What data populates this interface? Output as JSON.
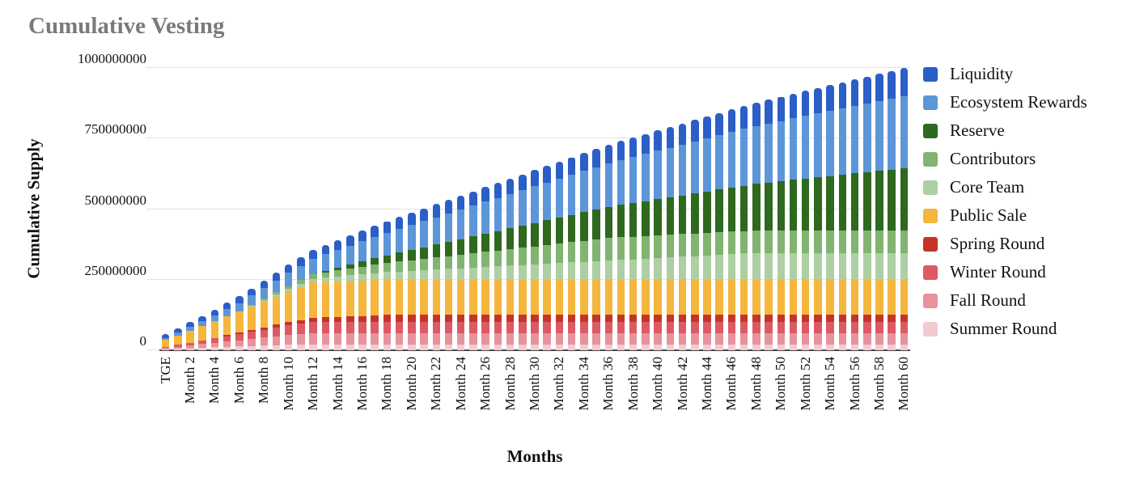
{
  "title": "Cumulative Vesting",
  "y_axis": {
    "title": "Cumulative Supply",
    "ticks": [
      {
        "label": "0",
        "value": 0
      },
      {
        "label": "250000000",
        "value": 250
      },
      {
        "label": "500000000",
        "value": 500
      },
      {
        "label": "750000000",
        "value": 750
      },
      {
        "label": "1000000000",
        "value": 1000
      }
    ]
  },
  "x_axis": {
    "title": "Months",
    "tick_labels": [
      "TGE",
      "Month 2",
      "Month 4",
      "Month 6",
      "Month 8",
      "Month 10",
      "Month 12",
      "Month 14",
      "Month 16",
      "Month 18",
      "Month 20",
      "Month 22",
      "Month 24",
      "Month 26",
      "Month 28",
      "Month 30",
      "Month 32",
      "Month 34",
      "Month 36",
      "Month 38",
      "Month 40",
      "Month 42",
      "Month 44",
      "Month 46",
      "Month 48",
      "Month 50",
      "Month 52",
      "Month 54",
      "Month 56",
      "Month 58",
      "Month 60"
    ],
    "label_every_n_bars": 2
  },
  "legend": [
    {
      "label": "Liquidity",
      "color": "#2b5fc7"
    },
    {
      "label": "Ecosystem Rewards",
      "color": "#5d96d8"
    },
    {
      "label": "Reserve",
      "color": "#2e691e"
    },
    {
      "label": "Contributors",
      "color": "#82b471"
    },
    {
      "label": "Core Team",
      "color": "#adcfa3"
    },
    {
      "label": "Public Sale",
      "color": "#f5b63e"
    },
    {
      "label": "Spring Round",
      "color": "#c53428"
    },
    {
      "label": "Winter Round",
      "color": "#dc5a64"
    },
    {
      "label": "Fall Round",
      "color": "#e6939c"
    },
    {
      "label": "Summer Round",
      "color": "#f3cad0"
    }
  ],
  "chart_data": {
    "type": "bar",
    "stacked": true,
    "title": "Cumulative Vesting",
    "xlabel": "Months",
    "ylabel": "Cumulative Supply",
    "unit": "million tokens",
    "ylim": [
      0,
      1000
    ],
    "ylim_display": [
      0,
      1000000000
    ],
    "grid": true,
    "legend_position": "right",
    "x_index": "0 = TGE, then Month 1 through Month 60 (61 bars)",
    "total_supply_millions": 1000,
    "series_order": "bottom to top",
    "series": [
      {
        "name": "Summer Round",
        "color": "#f3cad0",
        "total": 20,
        "values": [
          4,
          5.6,
          7.2,
          8.8,
          10.4,
          12,
          13.6,
          15.2,
          16.8,
          18.4,
          20,
          20,
          20,
          20,
          20,
          20,
          20,
          20,
          20,
          20,
          20,
          20,
          20,
          20,
          20,
          20,
          20,
          20,
          20,
          20,
          20,
          20,
          20,
          20,
          20,
          20,
          20,
          20,
          20,
          20,
          20,
          20,
          20,
          20,
          20,
          20,
          20,
          20,
          20,
          20,
          20,
          20,
          20,
          20,
          20,
          20,
          20,
          20,
          20,
          20,
          20
        ]
      },
      {
        "name": "Fall Round",
        "color": "#e6939c",
        "total": 40,
        "values": [
          4,
          7,
          10,
          13,
          16,
          19,
          22,
          25,
          28,
          31,
          34,
          37,
          40,
          40,
          40,
          40,
          40,
          40,
          40,
          40,
          40,
          40,
          40,
          40,
          40,
          40,
          40,
          40,
          40,
          40,
          40,
          40,
          40,
          40,
          40,
          40,
          40,
          40,
          40,
          40,
          40,
          40,
          40,
          40,
          40,
          40,
          40,
          40,
          40,
          40,
          40,
          40,
          40,
          40,
          40,
          40,
          40,
          40,
          40,
          40,
          40
        ]
      },
      {
        "name": "Winter Round",
        "color": "#dc5a64",
        "total": 40,
        "values": [
          4,
          7,
          10,
          13,
          16,
          19,
          22,
          25,
          28,
          31,
          34,
          37,
          40,
          40,
          40,
          40,
          40,
          40,
          40,
          40,
          40,
          40,
          40,
          40,
          40,
          40,
          40,
          40,
          40,
          40,
          40,
          40,
          40,
          40,
          40,
          40,
          40,
          40,
          40,
          40,
          40,
          40,
          40,
          40,
          40,
          40,
          40,
          40,
          40,
          40,
          40,
          40,
          40,
          40,
          40,
          40,
          40,
          40,
          40,
          40,
          40
        ]
      },
      {
        "name": "Spring Round",
        "color": "#c53428",
        "total": 25,
        "values": [
          0,
          0,
          0,
          0,
          1.67,
          3.33,
          5,
          6.67,
          8.33,
          10,
          11.67,
          13.33,
          15,
          16.67,
          18.33,
          20,
          21.67,
          23.33,
          25,
          25,
          25,
          25,
          25,
          25,
          25,
          25,
          25,
          25,
          25,
          25,
          25,
          25,
          25,
          25,
          25,
          25,
          25,
          25,
          25,
          25,
          25,
          25,
          25,
          25,
          25,
          25,
          25,
          25,
          25,
          25,
          25,
          25,
          25,
          25,
          25,
          25,
          25,
          25,
          25,
          25,
          25
        ]
      },
      {
        "name": "Public Sale",
        "color": "#f5b63e",
        "total": 125,
        "values": [
          25,
          33.33,
          41.67,
          50,
          58.33,
          66.67,
          75,
          83.33,
          91.67,
          100,
          108.33,
          116.67,
          125,
          125,
          125,
          125,
          125,
          125,
          125,
          125,
          125,
          125,
          125,
          125,
          125,
          125,
          125,
          125,
          125,
          125,
          125,
          125,
          125,
          125,
          125,
          125,
          125,
          125,
          125,
          125,
          125,
          125,
          125,
          125,
          125,
          125,
          125,
          125,
          125,
          125,
          125,
          125,
          125,
          125,
          125,
          125,
          125,
          125,
          125,
          125,
          125
        ]
      },
      {
        "name": "Core Team",
        "color": "#adcfa3",
        "total": 95,
        "values": [
          0,
          0,
          0,
          0,
          0,
          0,
          0,
          2.26,
          4.52,
          6.79,
          9.05,
          11.31,
          13.57,
          15.83,
          18.1,
          20.36,
          22.62,
          24.88,
          27.14,
          29.4,
          31.67,
          33.93,
          36.19,
          38.45,
          40.71,
          42.98,
          45.24,
          47.5,
          49.76,
          52.02,
          54.29,
          56.55,
          58.81,
          61.07,
          63.33,
          65.6,
          67.86,
          70.12,
          72.38,
          74.64,
          76.9,
          79.17,
          81.43,
          83.69,
          85.95,
          88.21,
          90.48,
          92.74,
          95,
          95,
          95,
          95,
          95,
          95,
          95,
          95,
          95,
          95,
          95,
          95,
          95
        ]
      },
      {
        "name": "Contributors",
        "color": "#82b471",
        "total": 80,
        "values": [
          0,
          0,
          0,
          0,
          0,
          0,
          0,
          2.67,
          5.33,
          8,
          10.67,
          13.33,
          16,
          18.67,
          21.33,
          24,
          26.67,
          29.33,
          32,
          34.67,
          37.33,
          40,
          42.67,
          45.33,
          48,
          50.67,
          53.33,
          56,
          58.67,
          61.33,
          64,
          66.67,
          69.33,
          72,
          74.67,
          77.33,
          80,
          80,
          80,
          80,
          80,
          80,
          80,
          80,
          80,
          80,
          80,
          80,
          80,
          80,
          80,
          80,
          80,
          80,
          80,
          80,
          80,
          80,
          80,
          80,
          80
        ]
      },
      {
        "name": "Reserve",
        "color": "#2e691e",
        "total": 220,
        "values": [
          0,
          0,
          0,
          0,
          0,
          0,
          0,
          0,
          0,
          0,
          0,
          0,
          0,
          4.58,
          9.17,
          13.75,
          18.33,
          22.92,
          27.5,
          32.08,
          36.67,
          41.25,
          45.83,
          50.42,
          55,
          59.58,
          64.17,
          68.75,
          73.33,
          77.92,
          82.5,
          87.08,
          91.67,
          96.25,
          100.83,
          105.42,
          110,
          114.58,
          119.17,
          123.75,
          128.33,
          132.92,
          137.5,
          142.08,
          146.67,
          151.25,
          155.83,
          160.42,
          165,
          169.58,
          174.17,
          178.75,
          183.33,
          187.92,
          192.5,
          197.08,
          201.67,
          206.25,
          210.83,
          215.42,
          220
        ]
      },
      {
        "name": "Ecosystem Rewards",
        "color": "#5d96d8",
        "total": 255,
        "values": [
          5,
          9.17,
          13.33,
          17.5,
          21.67,
          25.83,
          30,
          34.17,
          38.33,
          42.5,
          46.67,
          50.83,
          55,
          59.17,
          63.33,
          67.5,
          71.67,
          75.83,
          80,
          84.17,
          88.33,
          92.5,
          96.67,
          100.83,
          105,
          109.17,
          113.33,
          117.5,
          121.67,
          125.83,
          130,
          134.17,
          138.33,
          142.5,
          146.67,
          150.83,
          155,
          159.17,
          163.33,
          167.5,
          171.67,
          175.83,
          180,
          184.17,
          188.33,
          192.5,
          196.67,
          200.83,
          205,
          209.17,
          213.33,
          217.5,
          221.67,
          225.83,
          230,
          234.17,
          238.33,
          242.5,
          246.67,
          250.83,
          255
        ]
      },
      {
        "name": "Liquidity",
        "color": "#2b5fc7",
        "total": 100,
        "values": [
          15,
          16.42,
          17.83,
          19.25,
          20.67,
          22.08,
          23.5,
          24.92,
          26.33,
          27.75,
          29.17,
          30.58,
          32,
          33.42,
          34.83,
          36.25,
          37.67,
          39.08,
          40.5,
          41.92,
          43.33,
          44.75,
          46.17,
          47.58,
          49,
          50.42,
          51.83,
          53.25,
          54.67,
          56.08,
          57.5,
          58.92,
          60.33,
          61.75,
          63.17,
          64.58,
          66,
          67.42,
          68.83,
          70.25,
          71.67,
          73.08,
          74.5,
          75.92,
          77.33,
          78.75,
          80.17,
          81.58,
          83,
          84.42,
          85.83,
          87.25,
          88.67,
          90.08,
          91.5,
          92.92,
          94.33,
          95.75,
          97.17,
          98.58,
          100
        ]
      }
    ]
  }
}
